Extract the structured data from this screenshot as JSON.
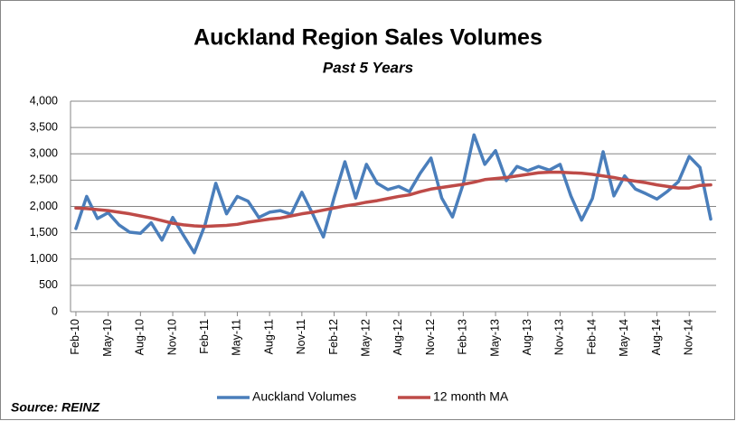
{
  "chart_data": {
    "type": "line",
    "title": "Auckland Region Sales Volumes",
    "subtitle": "Past 5 Years",
    "source": "Source: REINZ",
    "categories": [
      "Feb-10",
      null,
      null,
      "May-10",
      null,
      null,
      "Aug-10",
      null,
      null,
      "Nov-10",
      null,
      null,
      "Feb-11",
      null,
      null,
      "May-11",
      null,
      null,
      "Aug-11",
      null,
      null,
      "Nov-11",
      null,
      null,
      "Feb-12",
      null,
      null,
      "May-12",
      null,
      null,
      "Aug-12",
      null,
      null,
      "Nov-12",
      null,
      null,
      "Feb-13",
      null,
      null,
      "May-13",
      null,
      null,
      "Aug-13",
      null,
      null,
      "Nov-13",
      null,
      null,
      "Feb-14",
      null,
      null,
      "May-14",
      null,
      null,
      "Aug-14",
      null,
      null,
      "Nov-14",
      null,
      null
    ],
    "series": [
      {
        "name": "Auckland Volumes",
        "color": "#4a7ebb",
        "values": [
          1580,
          2190,
          1770,
          1880,
          1650,
          1510,
          1490,
          1690,
          1360,
          1790,
          1450,
          1120,
          1650,
          2440,
          1860,
          2190,
          2100,
          1790,
          1890,
          1920,
          1850,
          2270,
          1860,
          1420,
          2170,
          2850,
          2160,
          2800,
          2440,
          2320,
          2380,
          2280,
          2630,
          2920,
          2160,
          1800,
          2430,
          3360,
          2800,
          3060,
          2490,
          2760,
          2680,
          2760,
          2690,
          2800,
          2200,
          1740,
          2150,
          3040,
          2200,
          2580,
          2330,
          2240,
          2140,
          2290,
          2470,
          2950,
          2740,
          1760
        ]
      },
      {
        "name": "12 month MA",
        "color": "#be4b48",
        "values": [
          1970,
          1960,
          1940,
          1920,
          1890,
          1860,
          1820,
          1780,
          1730,
          1680,
          1650,
          1630,
          1620,
          1630,
          1640,
          1660,
          1700,
          1730,
          1760,
          1780,
          1820,
          1860,
          1890,
          1930,
          1970,
          2010,
          2040,
          2080,
          2110,
          2150,
          2190,
          2220,
          2280,
          2330,
          2360,
          2390,
          2420,
          2460,
          2510,
          2530,
          2550,
          2580,
          2610,
          2640,
          2650,
          2650,
          2640,
          2630,
          2610,
          2580,
          2550,
          2510,
          2480,
          2450,
          2410,
          2380,
          2350,
          2350,
          2400,
          2410
        ]
      }
    ],
    "ylim": [
      0,
      4000
    ],
    "yticks": [
      0,
      500,
      {
        "value": 1000,
        "label": "1,000"
      },
      {
        "value": 1500,
        "label": "1,500"
      },
      {
        "value": 2000,
        "label": "2,000"
      },
      {
        "value": 2500,
        "label": "2,500"
      },
      {
        "value": 3000,
        "label": "3,000"
      },
      {
        "value": 3500,
        "label": "3,500"
      },
      {
        "value": 4000,
        "label": "4,000"
      }
    ],
    "grid": true,
    "legend": "bottom"
  }
}
